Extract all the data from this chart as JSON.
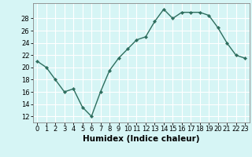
{
  "x": [
    0,
    1,
    2,
    3,
    4,
    5,
    6,
    7,
    8,
    9,
    10,
    11,
    12,
    13,
    14,
    15,
    16,
    17,
    18,
    19,
    20,
    21,
    22,
    23
  ],
  "y": [
    21,
    20,
    18,
    16,
    16.5,
    13.5,
    12,
    16,
    19.5,
    21.5,
    23,
    24.5,
    25,
    27.5,
    29.5,
    28,
    29,
    29,
    29,
    28.5,
    26.5,
    24,
    22,
    21.5
  ],
  "line_color": "#2e6e5e",
  "marker": "D",
  "marker_size": 2.2,
  "bg_color": "#d6f5f5",
  "grid_color": "#ffffff",
  "xlabel": "Humidex (Indice chaleur)",
  "xlim": [
    -0.5,
    23.5
  ],
  "ylim": [
    11,
    30.5
  ],
  "yticks": [
    12,
    14,
    16,
    18,
    20,
    22,
    24,
    26,
    28
  ],
  "xticks": [
    0,
    1,
    2,
    3,
    4,
    5,
    6,
    7,
    8,
    9,
    10,
    11,
    12,
    13,
    14,
    15,
    16,
    17,
    18,
    19,
    20,
    21,
    22,
    23
  ],
  "tick_label_fontsize": 6,
  "xlabel_fontsize": 7.5,
  "line_width": 1.0
}
